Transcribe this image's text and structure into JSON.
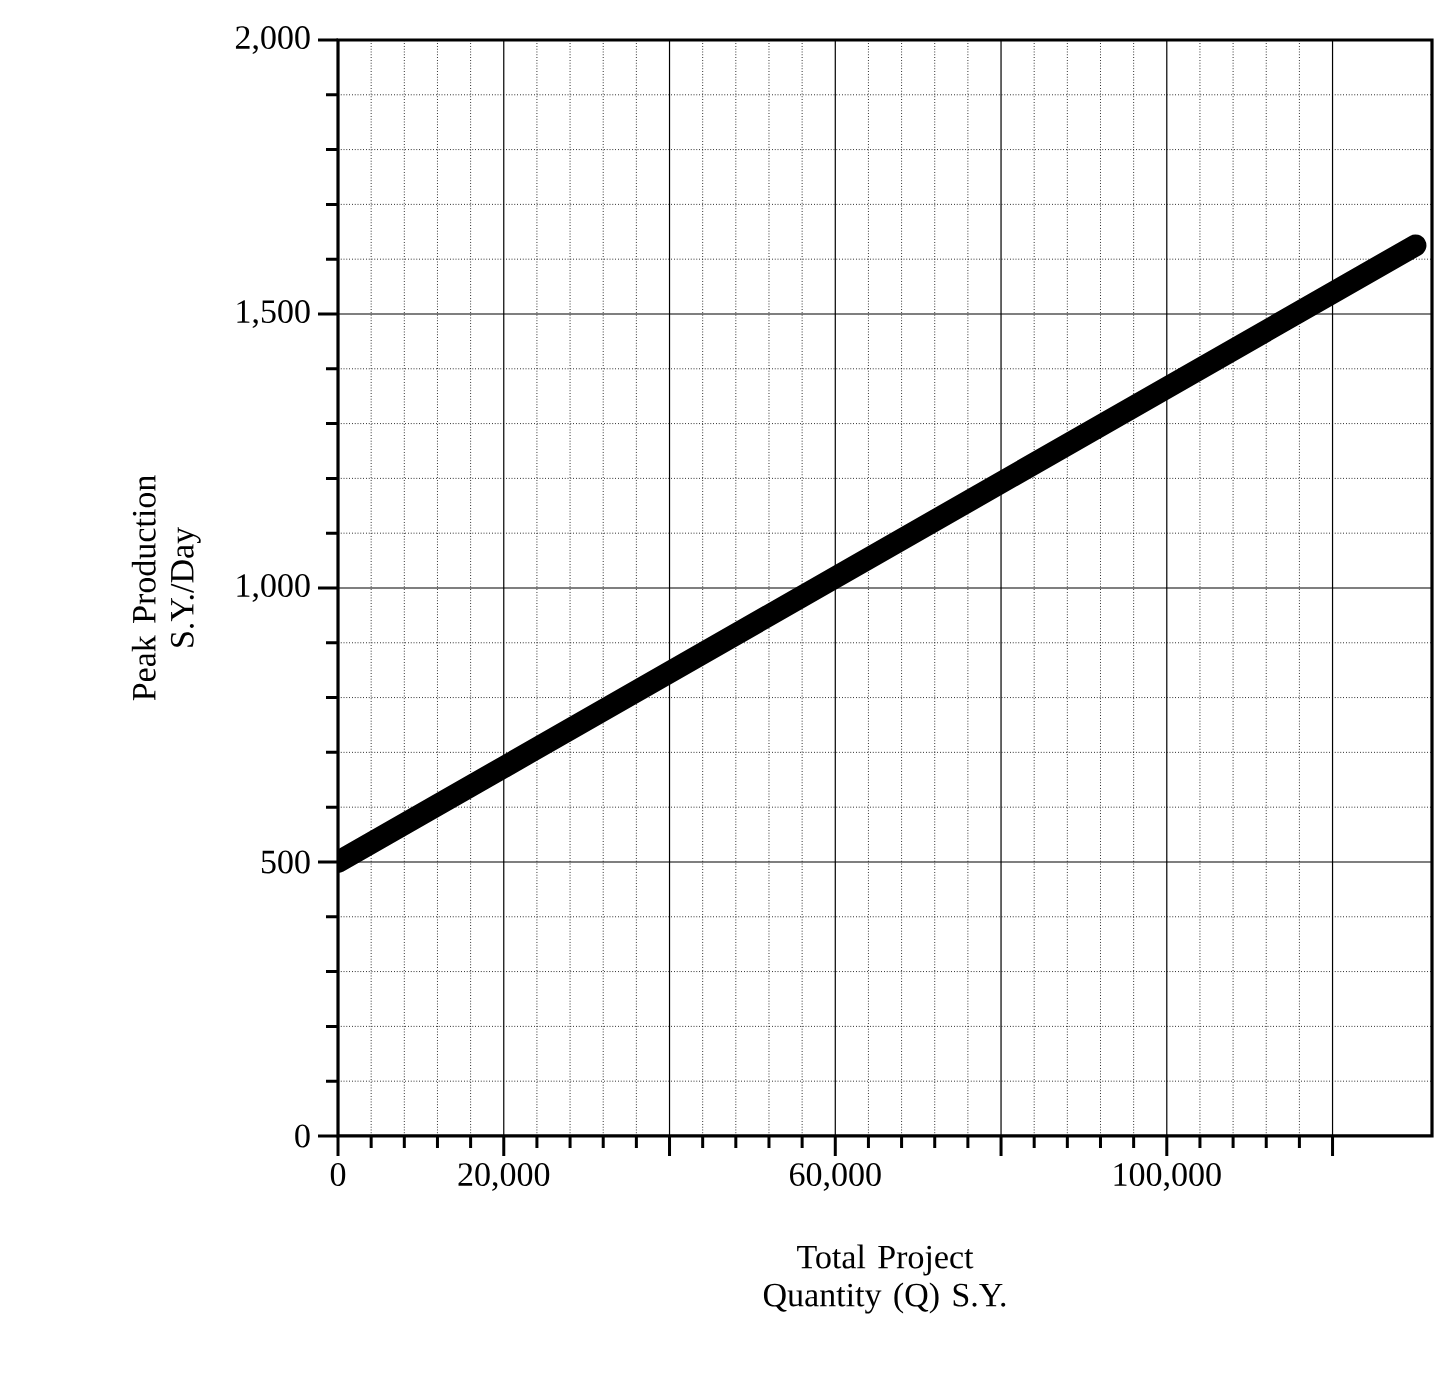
{
  "chart_data": {
    "type": "line",
    "xlabel": "Total Project Quantity (Q) S.Y.",
    "ylabel": "Peak Production S.Y./Day",
    "x": [
      0,
      130000
    ],
    "series": [
      {
        "color": "#000000",
        "values": [
          500,
          1625
        ]
      }
    ],
    "xlim": [
      0,
      132000
    ],
    "xticks": [
      0,
      {
        "value": 20000,
        "label": "20,000"
      },
      {
        "value": 40000,
        "label": null
      },
      {
        "value": 60000,
        "label": "60,000"
      },
      {
        "value": 80000,
        "label": null
      },
      {
        "value": 100000,
        "label": "100,000"
      },
      {
        "value": 120000,
        "label": null
      }
    ],
    "ylim": [
      0,
      2000
    ],
    "yticks": [
      0,
      500,
      {
        "value": 1000,
        "label": "1,000"
      },
      {
        "value": 1500,
        "label": "1,500"
      },
      {
        "value": 2000,
        "label": "2,000"
      }
    ],
    "grid": true,
    "marker": "none",
    "line_style": "solid"
  }
}
